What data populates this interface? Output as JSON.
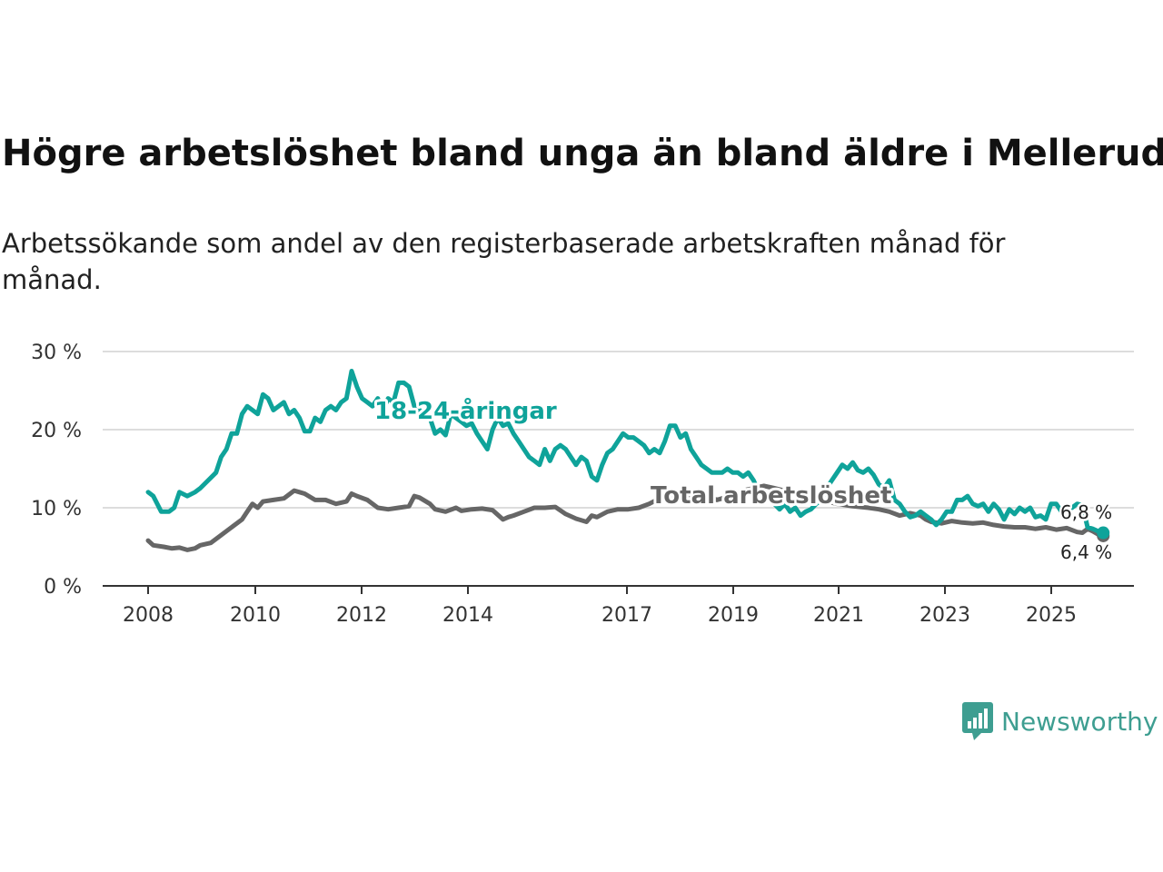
{
  "chart_data": {
    "type": "line",
    "title": "Högre arbetslöshet bland unga än bland äldre i Mellerud",
    "subtitle": "Arbetssökande som andel av den registerbaserade arbetskraften månad för månad.",
    "ylim": [
      0,
      30
    ],
    "y_ticks": [
      0,
      10,
      20,
      30
    ],
    "y_tick_labels": [
      "0 %",
      "10 %",
      "20 %",
      "30 %"
    ],
    "x_ticks": [
      2008,
      2010,
      2012,
      2014,
      2017,
      2019,
      2021,
      2023,
      2025
    ],
    "x_tick_labels": [
      "2008",
      "2010",
      "2012",
      "2014",
      "2017",
      "2019",
      "2021",
      "2023",
      "2025"
    ],
    "xlim": [
      2007.2,
      2026.6
    ],
    "grid": true,
    "series": [
      {
        "name": "18-24-åringar",
        "color": "#0fa39a",
        "end_label": "6,8 %",
        "points": [
          [
            2008.0,
            12.0
          ],
          [
            2008.1,
            11.5
          ],
          [
            2008.25,
            9.5
          ],
          [
            2008.4,
            9.5
          ],
          [
            2008.5,
            10.0
          ],
          [
            2008.6,
            12.0
          ],
          [
            2008.75,
            11.5
          ],
          [
            2008.9,
            12.0
          ],
          [
            2009.0,
            12.5
          ],
          [
            2009.15,
            13.5
          ],
          [
            2009.3,
            14.5
          ],
          [
            2009.4,
            16.5
          ],
          [
            2009.5,
            17.5
          ],
          [
            2009.6,
            19.5
          ],
          [
            2009.7,
            19.5
          ],
          [
            2009.8,
            22.0
          ],
          [
            2009.9,
            23.0
          ],
          [
            2010.0,
            22.5
          ],
          [
            2010.1,
            22.0
          ],
          [
            2010.2,
            24.5
          ],
          [
            2010.3,
            24.0
          ],
          [
            2010.4,
            22.5
          ],
          [
            2010.5,
            23.0
          ],
          [
            2010.6,
            23.5
          ],
          [
            2010.7,
            22.0
          ],
          [
            2010.8,
            22.5
          ],
          [
            2010.9,
            21.5
          ],
          [
            2011.0,
            19.8
          ],
          [
            2011.1,
            19.8
          ],
          [
            2011.2,
            21.5
          ],
          [
            2011.3,
            21.0
          ],
          [
            2011.4,
            22.5
          ],
          [
            2011.5,
            23.0
          ],
          [
            2011.6,
            22.5
          ],
          [
            2011.7,
            23.5
          ],
          [
            2011.8,
            24.0
          ],
          [
            2011.9,
            27.5
          ],
          [
            2012.0,
            25.5
          ],
          [
            2012.1,
            24.0
          ],
          [
            2012.2,
            23.5
          ],
          [
            2012.3,
            23.0
          ],
          [
            2012.4,
            24.0
          ],
          [
            2012.5,
            22.5
          ],
          [
            2012.6,
            24.0
          ],
          [
            2012.7,
            23.5
          ],
          [
            2012.8,
            26.0
          ],
          [
            2012.9,
            26.0
          ],
          [
            2013.0,
            25.5
          ],
          [
            2013.1,
            23.0
          ],
          [
            2013.2,
            22.5
          ],
          [
            2013.3,
            22.0
          ],
          [
            2013.4,
            21.5
          ],
          [
            2013.5,
            19.5
          ],
          [
            2013.6,
            20.0
          ],
          [
            2013.7,
            19.3
          ],
          [
            2013.8,
            22.0
          ],
          [
            2013.9,
            21.5
          ],
          [
            2014.0,
            21.0
          ],
          [
            2014.1,
            20.5
          ],
          [
            2014.2,
            20.8
          ],
          [
            2014.3,
            19.5
          ],
          [
            2014.4,
            18.5
          ],
          [
            2014.5,
            17.5
          ],
          [
            2014.6,
            20.0
          ],
          [
            2014.7,
            21.5
          ],
          [
            2014.8,
            20.5
          ],
          [
            2014.9,
            20.8
          ],
          [
            2015.0,
            19.5
          ],
          [
            2015.1,
            18.5
          ],
          [
            2015.2,
            17.5
          ],
          [
            2015.3,
            16.5
          ],
          [
            2015.4,
            16.0
          ],
          [
            2015.5,
            15.5
          ],
          [
            2015.6,
            17.5
          ],
          [
            2015.7,
            16.0
          ],
          [
            2015.8,
            17.5
          ],
          [
            2015.9,
            18.0
          ],
          [
            2016.0,
            17.5
          ],
          [
            2016.1,
            16.5
          ],
          [
            2016.2,
            15.5
          ],
          [
            2016.3,
            16.5
          ],
          [
            2016.4,
            16.0
          ],
          [
            2016.5,
            14.0
          ],
          [
            2016.6,
            13.5
          ],
          [
            2016.7,
            15.5
          ],
          [
            2016.8,
            17.0
          ],
          [
            2016.9,
            17.5
          ],
          [
            2017.0,
            18.5
          ],
          [
            2017.1,
            19.5
          ],
          [
            2017.2,
            19.0
          ],
          [
            2017.3,
            19.0
          ],
          [
            2017.4,
            18.5
          ],
          [
            2017.5,
            18.0
          ],
          [
            2017.6,
            17.0
          ],
          [
            2017.7,
            17.5
          ],
          [
            2017.8,
            17.0
          ],
          [
            2017.9,
            18.5
          ],
          [
            2018.0,
            20.5
          ],
          [
            2018.1,
            20.5
          ],
          [
            2018.2,
            19.0
          ],
          [
            2018.3,
            19.5
          ],
          [
            2018.4,
            17.5
          ],
          [
            2018.5,
            16.5
          ],
          [
            2018.6,
            15.5
          ],
          [
            2018.7,
            15.0
          ],
          [
            2018.8,
            14.5
          ],
          [
            2018.9,
            14.5
          ],
          [
            2019.0,
            14.5
          ],
          [
            2019.1,
            15.0
          ],
          [
            2019.2,
            14.5
          ],
          [
            2019.3,
            14.5
          ],
          [
            2019.4,
            14.0
          ],
          [
            2019.5,
            14.5
          ],
          [
            2019.6,
            13.5
          ],
          [
            2019.7,
            12.0
          ],
          [
            2019.8,
            11.5
          ],
          [
            2019.9,
            11.0
          ],
          [
            2020.0,
            10.5
          ],
          [
            2020.1,
            9.8
          ],
          [
            2020.2,
            10.5
          ],
          [
            2020.3,
            9.5
          ],
          [
            2020.4,
            10.0
          ],
          [
            2020.5,
            9.0
          ],
          [
            2020.6,
            9.5
          ],
          [
            2020.7,
            9.8
          ],
          [
            2020.8,
            10.5
          ],
          [
            2020.9,
            11.0
          ],
          [
            2021.0,
            12.5
          ],
          [
            2021.1,
            13.5
          ],
          [
            2021.2,
            14.5
          ],
          [
            2021.3,
            15.5
          ],
          [
            2021.4,
            15.0
          ],
          [
            2021.5,
            15.8
          ],
          [
            2021.6,
            14.8
          ],
          [
            2021.7,
            14.5
          ],
          [
            2021.8,
            15.0
          ],
          [
            2021.9,
            14.2
          ],
          [
            2022.0,
            13.0
          ],
          [
            2022.1,
            12.5
          ],
          [
            2022.2,
            13.5
          ],
          [
            2022.3,
            11.0
          ],
          [
            2022.4,
            10.5
          ],
          [
            2022.5,
            9.5
          ],
          [
            2022.6,
            8.8
          ],
          [
            2022.7,
            9.0
          ],
          [
            2022.8,
            9.5
          ],
          [
            2022.9,
            9.0
          ],
          [
            2023.0,
            8.5
          ],
          [
            2023.1,
            7.8
          ],
          [
            2023.2,
            8.5
          ],
          [
            2023.3,
            9.5
          ],
          [
            2023.4,
            9.5
          ],
          [
            2023.5,
            11.0
          ],
          [
            2023.6,
            11.0
          ],
          [
            2023.7,
            11.5
          ],
          [
            2023.8,
            10.5
          ],
          [
            2023.9,
            10.2
          ],
          [
            2024.0,
            10.5
          ],
          [
            2024.1,
            9.5
          ],
          [
            2024.2,
            10.5
          ],
          [
            2024.3,
            9.8
          ],
          [
            2024.4,
            8.5
          ],
          [
            2024.5,
            9.8
          ],
          [
            2024.6,
            9.2
          ],
          [
            2024.7,
            10.0
          ],
          [
            2024.8,
            9.5
          ],
          [
            2024.9,
            10.0
          ],
          [
            2025.0,
            8.8
          ],
          [
            2025.1,
            9.0
          ],
          [
            2025.2,
            8.5
          ],
          [
            2025.3,
            10.5
          ],
          [
            2025.4,
            10.5
          ],
          [
            2025.5,
            9.5
          ],
          [
            2025.6,
            9.8
          ],
          [
            2025.7,
            10.0
          ],
          [
            2025.8,
            10.5
          ],
          [
            2025.9,
            10.3
          ],
          [
            2026.0,
            7.5
          ],
          [
            2026.1,
            7.3
          ],
          [
            2026.2,
            7.0
          ],
          [
            2026.3,
            6.8
          ]
        ]
      },
      {
        "name": "Total arbetslöshet",
        "color": "#666666",
        "end_label": "6,4 %",
        "points": [
          [
            2008.0,
            5.8
          ],
          [
            2008.1,
            5.2
          ],
          [
            2008.3,
            5.0
          ],
          [
            2008.45,
            4.8
          ],
          [
            2008.6,
            4.9
          ],
          [
            2008.75,
            4.6
          ],
          [
            2008.9,
            4.8
          ],
          [
            2009.0,
            5.2
          ],
          [
            2009.2,
            5.5
          ],
          [
            2009.4,
            6.5
          ],
          [
            2009.6,
            7.5
          ],
          [
            2009.8,
            8.5
          ],
          [
            2009.9,
            9.5
          ],
          [
            2010.0,
            10.5
          ],
          [
            2010.1,
            10.0
          ],
          [
            2010.2,
            10.8
          ],
          [
            2010.4,
            11.0
          ],
          [
            2010.6,
            11.2
          ],
          [
            2010.8,
            12.2
          ],
          [
            2010.9,
            12.0
          ],
          [
            2011.0,
            11.8
          ],
          [
            2011.2,
            11.0
          ],
          [
            2011.4,
            11.0
          ],
          [
            2011.6,
            10.5
          ],
          [
            2011.8,
            10.8
          ],
          [
            2011.9,
            11.8
          ],
          [
            2012.0,
            11.5
          ],
          [
            2012.2,
            11.0
          ],
          [
            2012.4,
            10.0
          ],
          [
            2012.6,
            9.8
          ],
          [
            2012.8,
            10.0
          ],
          [
            2013.0,
            10.2
          ],
          [
            2013.1,
            11.5
          ],
          [
            2013.2,
            11.3
          ],
          [
            2013.4,
            10.5
          ],
          [
            2013.5,
            9.8
          ],
          [
            2013.7,
            9.5
          ],
          [
            2013.9,
            10.0
          ],
          [
            2014.0,
            9.6
          ],
          [
            2014.2,
            9.8
          ],
          [
            2014.4,
            9.9
          ],
          [
            2014.6,
            9.7
          ],
          [
            2014.8,
            8.5
          ],
          [
            2014.9,
            8.8
          ],
          [
            2015.0,
            9.0
          ],
          [
            2015.2,
            9.5
          ],
          [
            2015.4,
            10.0
          ],
          [
            2015.6,
            10.0
          ],
          [
            2015.8,
            10.1
          ],
          [
            2016.0,
            9.2
          ],
          [
            2016.2,
            8.6
          ],
          [
            2016.4,
            8.2
          ],
          [
            2016.5,
            9.0
          ],
          [
            2016.6,
            8.8
          ],
          [
            2016.8,
            9.5
          ],
          [
            2017.0,
            9.8
          ],
          [
            2017.2,
            9.8
          ],
          [
            2017.4,
            10.0
          ],
          [
            2017.6,
            10.5
          ],
          [
            2017.8,
            11.2
          ],
          [
            2018.0,
            11.5
          ],
          [
            2018.1,
            11.2
          ],
          [
            2018.3,
            11.5
          ],
          [
            2018.5,
            12.0
          ],
          [
            2018.7,
            11.5
          ],
          [
            2018.9,
            11.0
          ],
          [
            2019.0,
            11.2
          ],
          [
            2019.2,
            11.5
          ],
          [
            2019.4,
            12.2
          ],
          [
            2019.6,
            12.5
          ],
          [
            2019.8,
            12.8
          ],
          [
            2020.0,
            12.5
          ],
          [
            2020.3,
            12.0
          ],
          [
            2020.6,
            11.5
          ],
          [
            2020.9,
            11.0
          ],
          [
            2021.2,
            10.5
          ],
          [
            2021.5,
            10.2
          ],
          [
            2021.8,
            10.0
          ],
          [
            2022.0,
            9.8
          ],
          [
            2022.2,
            9.5
          ],
          [
            2022.4,
            9.0
          ],
          [
            2022.6,
            9.3
          ],
          [
            2022.8,
            9.0
          ],
          [
            2022.9,
            8.5
          ],
          [
            2023.0,
            8.2
          ],
          [
            2023.2,
            8.0
          ],
          [
            2023.4,
            8.3
          ],
          [
            2023.6,
            8.1
          ],
          [
            2023.8,
            8.0
          ],
          [
            2024.0,
            8.1
          ],
          [
            2024.2,
            7.8
          ],
          [
            2024.4,
            7.6
          ],
          [
            2024.6,
            7.5
          ],
          [
            2024.8,
            7.5
          ],
          [
            2025.0,
            7.3
          ],
          [
            2025.2,
            7.5
          ],
          [
            2025.4,
            7.2
          ],
          [
            2025.6,
            7.4
          ],
          [
            2025.8,
            6.9
          ],
          [
            2025.9,
            6.8
          ],
          [
            2026.0,
            7.3
          ],
          [
            2026.1,
            7.0
          ],
          [
            2026.2,
            6.6
          ],
          [
            2026.3,
            6.4
          ]
        ]
      }
    ]
  },
  "brand": {
    "name": "Newsworthy",
    "logo_icon": "bar-chart-speech-bubble-icon",
    "color": "#3e9e91"
  }
}
